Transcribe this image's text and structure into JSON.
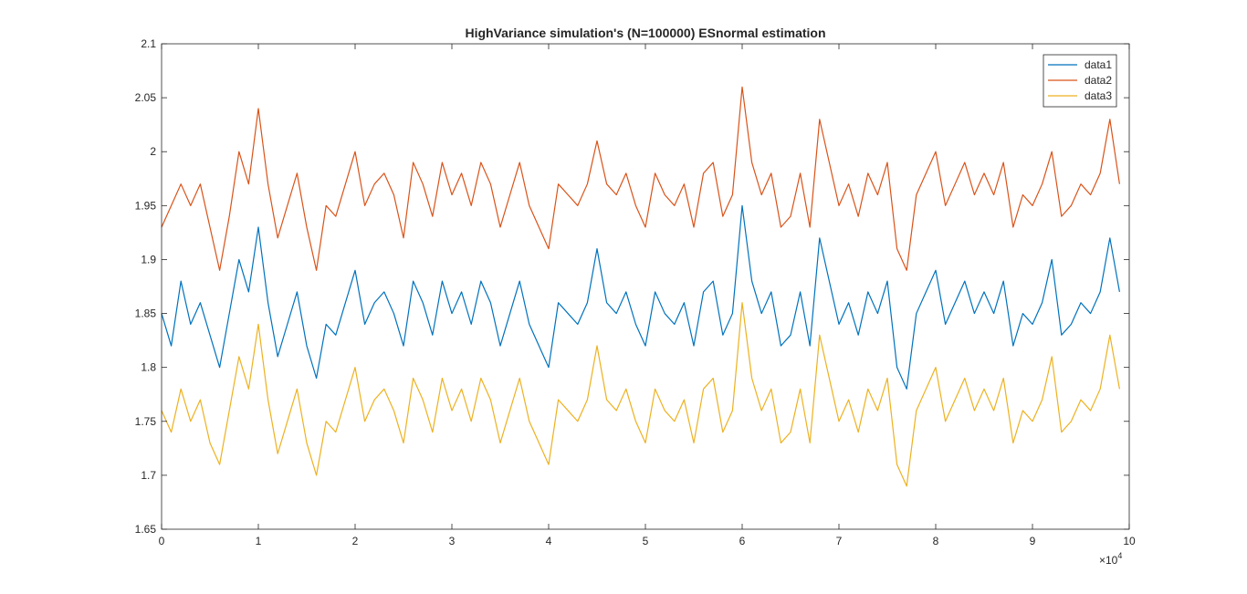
{
  "chart_data": {
    "type": "line",
    "title": "HighVariance simulation's (N=100000) ESnormal estimation",
    "xlabel": "",
    "ylabel": "",
    "xlim": [
      0,
      100000
    ],
    "ylim": [
      1.65,
      2.1
    ],
    "x_ticks": [
      0,
      10000,
      20000,
      30000,
      40000,
      50000,
      60000,
      70000,
      80000,
      90000,
      100000
    ],
    "x_tick_labels": [
      "0",
      "1",
      "2",
      "3",
      "4",
      "5",
      "6",
      "7",
      "8",
      "9",
      "10"
    ],
    "x_exponent_label": "×10",
    "x_exponent_power": "4",
    "y_ticks": [
      1.65,
      1.7,
      1.75,
      1.8,
      1.85,
      1.9,
      1.95,
      2.0,
      2.05,
      2.1
    ],
    "y_tick_labels": [
      "1.65",
      "1.7",
      "1.75",
      "1.8",
      "1.85",
      "1.9",
      "1.95",
      "2",
      "2.05",
      "2.1"
    ],
    "grid": false,
    "legend_position": "top-right",
    "x": [
      0,
      1000,
      2000,
      3000,
      4000,
      5000,
      6000,
      7000,
      8000,
      9000,
      10000,
      11000,
      12000,
      13000,
      14000,
      15000,
      16000,
      17000,
      18000,
      19000,
      20000,
      21000,
      22000,
      23000,
      24000,
      25000,
      26000,
      27000,
      28000,
      29000,
      30000,
      31000,
      32000,
      33000,
      34000,
      35000,
      36000,
      37000,
      38000,
      39000,
      40000,
      41000,
      42000,
      43000,
      44000,
      45000,
      46000,
      47000,
      48000,
      49000,
      50000,
      51000,
      52000,
      53000,
      54000,
      55000,
      56000,
      57000,
      58000,
      59000,
      60000,
      61000,
      62000,
      63000,
      64000,
      65000,
      66000,
      67000,
      68000,
      69000,
      70000,
      71000,
      72000,
      73000,
      74000,
      75000,
      76000,
      77000,
      78000,
      79000,
      80000,
      81000,
      82000,
      83000,
      84000,
      85000,
      86000,
      87000,
      88000,
      89000,
      90000,
      91000,
      92000,
      93000,
      94000,
      95000,
      96000,
      97000,
      98000,
      99000
    ],
    "series": [
      {
        "name": "data1",
        "color": "#0072BD",
        "values": [
          1.85,
          1.82,
          1.88,
          1.84,
          1.86,
          1.83,
          1.8,
          1.85,
          1.9,
          1.87,
          1.93,
          1.86,
          1.81,
          1.84,
          1.87,
          1.82,
          1.79,
          1.84,
          1.83,
          1.86,
          1.89,
          1.84,
          1.86,
          1.87,
          1.85,
          1.82,
          1.88,
          1.86,
          1.83,
          1.88,
          1.85,
          1.87,
          1.84,
          1.88,
          1.86,
          1.82,
          1.85,
          1.88,
          1.84,
          1.82,
          1.8,
          1.86,
          1.85,
          1.84,
          1.86,
          1.91,
          1.86,
          1.85,
          1.87,
          1.84,
          1.82,
          1.87,
          1.85,
          1.84,
          1.86,
          1.82,
          1.87,
          1.88,
          1.83,
          1.85,
          1.95,
          1.88,
          1.85,
          1.87,
          1.82,
          1.83,
          1.87,
          1.82,
          1.92,
          1.88,
          1.84,
          1.86,
          1.83,
          1.87,
          1.85,
          1.88,
          1.8,
          1.78,
          1.85,
          1.87,
          1.89,
          1.84,
          1.86,
          1.88,
          1.85,
          1.87,
          1.85,
          1.88,
          1.82,
          1.85,
          1.84,
          1.86,
          1.9,
          1.83,
          1.84,
          1.86,
          1.85,
          1.87,
          1.92,
          1.87
        ]
      },
      {
        "name": "data2",
        "color": "#D95319",
        "values": [
          1.93,
          1.95,
          1.97,
          1.95,
          1.97,
          1.93,
          1.89,
          1.94,
          2.0,
          1.97,
          2.04,
          1.97,
          1.92,
          1.95,
          1.98,
          1.93,
          1.89,
          1.95,
          1.94,
          1.97,
          2.0,
          1.95,
          1.97,
          1.98,
          1.96,
          1.92,
          1.99,
          1.97,
          1.94,
          1.99,
          1.96,
          1.98,
          1.95,
          1.99,
          1.97,
          1.93,
          1.96,
          1.99,
          1.95,
          1.93,
          1.91,
          1.97,
          1.96,
          1.95,
          1.97,
          2.01,
          1.97,
          1.96,
          1.98,
          1.95,
          1.93,
          1.98,
          1.96,
          1.95,
          1.97,
          1.93,
          1.98,
          1.99,
          1.94,
          1.96,
          2.06,
          1.99,
          1.96,
          1.98,
          1.93,
          1.94,
          1.98,
          1.93,
          2.03,
          1.99,
          1.95,
          1.97,
          1.94,
          1.98,
          1.96,
          1.99,
          1.91,
          1.89,
          1.96,
          1.98,
          2.0,
          1.95,
          1.97,
          1.99,
          1.96,
          1.98,
          1.96,
          1.99,
          1.93,
          1.96,
          1.95,
          1.97,
          2.0,
          1.94,
          1.95,
          1.97,
          1.96,
          1.98,
          2.03,
          1.97
        ]
      },
      {
        "name": "data3",
        "color": "#EDB120",
        "values": [
          1.76,
          1.74,
          1.78,
          1.75,
          1.77,
          1.73,
          1.71,
          1.76,
          1.81,
          1.78,
          1.84,
          1.77,
          1.72,
          1.75,
          1.78,
          1.73,
          1.7,
          1.75,
          1.74,
          1.77,
          1.8,
          1.75,
          1.77,
          1.78,
          1.76,
          1.73,
          1.79,
          1.77,
          1.74,
          1.79,
          1.76,
          1.78,
          1.75,
          1.79,
          1.77,
          1.73,
          1.76,
          1.79,
          1.75,
          1.73,
          1.71,
          1.77,
          1.76,
          1.75,
          1.77,
          1.82,
          1.77,
          1.76,
          1.78,
          1.75,
          1.73,
          1.78,
          1.76,
          1.75,
          1.77,
          1.73,
          1.78,
          1.79,
          1.74,
          1.76,
          1.86,
          1.79,
          1.76,
          1.78,
          1.73,
          1.74,
          1.78,
          1.73,
          1.83,
          1.79,
          1.75,
          1.77,
          1.74,
          1.78,
          1.76,
          1.79,
          1.71,
          1.69,
          1.76,
          1.78,
          1.8,
          1.75,
          1.77,
          1.79,
          1.76,
          1.78,
          1.76,
          1.79,
          1.73,
          1.76,
          1.75,
          1.77,
          1.81,
          1.74,
          1.75,
          1.77,
          1.76,
          1.78,
          1.83,
          1.78
        ]
      }
    ]
  }
}
